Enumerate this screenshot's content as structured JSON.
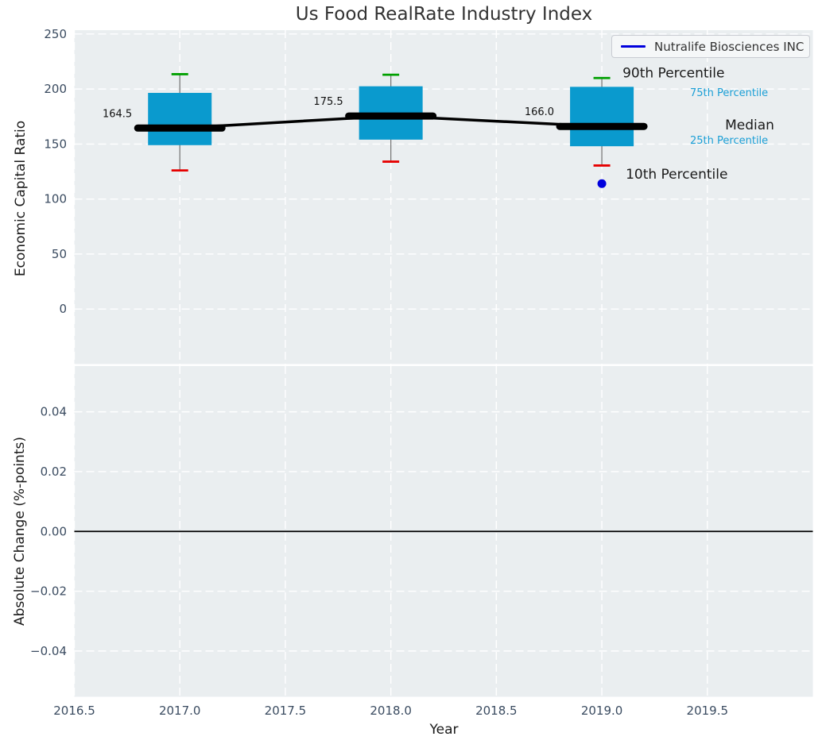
{
  "title": "Us Food RealRate Industry Index",
  "legend": {
    "label": "Nutralife Biosciences INC"
  },
  "colors": {
    "axes_bg": "#eaeef0",
    "grid": "#ffffff",
    "box_fill": "#0a9ace",
    "whisker": "#7a7a7a",
    "cap_high": "#00a000",
    "cap_low": "#e60000",
    "median_line": "#000000",
    "company": "#0000dd",
    "minor_annotation": "#1b9fd6",
    "major_annotation": "#1a1a1a",
    "tick_label": "#3a4b60",
    "zero_line": "#000000",
    "title_text": "#333333"
  },
  "chart_data": {
    "type": "boxplot",
    "title": "Us Food RealRate Industry Index",
    "xlabel": "Year",
    "xlim": [
      2016.5,
      2020.0
    ],
    "x_ticks": [
      {
        "value": 2016.5,
        "label": "2016.5"
      },
      {
        "value": 2017.0,
        "label": "2017.0"
      },
      {
        "value": 2017.5,
        "label": "2017.5"
      },
      {
        "value": 2018.0,
        "label": "2018.0"
      },
      {
        "value": 2018.5,
        "label": "2018.5"
      },
      {
        "value": 2019.0,
        "label": "2019.0"
      },
      {
        "value": 2019.5,
        "label": "2019.5"
      }
    ],
    "top": {
      "ylabel": "Economic Capital Ratio",
      "ylim": [
        -50,
        253.5
      ],
      "y_ticks": [
        {
          "value": 0,
          "label": "0"
        },
        {
          "value": 50,
          "label": "50"
        },
        {
          "value": 100,
          "label": "100"
        },
        {
          "value": 150,
          "label": "150"
        },
        {
          "value": 200,
          "label": "200"
        },
        {
          "value": 250,
          "label": "250"
        }
      ],
      "boxes": [
        {
          "year": 2017,
          "p10": 126,
          "q1": 149,
          "median": 164.5,
          "q3": 196.5,
          "p90": 213.5,
          "median_label": "164.5"
        },
        {
          "year": 2018,
          "p10": 134,
          "q1": 154,
          "median": 175.5,
          "q3": 202.5,
          "p90": 213,
          "median_label": "175.5"
        },
        {
          "year": 2019,
          "p10": 130.5,
          "q1": 148,
          "median": 166.0,
          "q3": 202,
          "p90": 210,
          "median_label": "166.0"
        }
      ],
      "median_trend": [
        [
          2017,
          164.5
        ],
        [
          2018,
          175.5
        ],
        [
          2019,
          166.0
        ]
      ],
      "company_point": {
        "series": "Nutralife Biosciences INC",
        "year": 2019,
        "value": 114
      },
      "annotations": [
        {
          "text": "90th Percentile",
          "year": 2019.098,
          "value": 215,
          "style": "major"
        },
        {
          "text": "75th Percentile",
          "year": 2019.418,
          "value": 198,
          "style": "minor"
        },
        {
          "text": "Median",
          "year": 2019.584,
          "value": 167.5,
          "style": "major"
        },
        {
          "text": "25th Percentile",
          "year": 2019.418,
          "value": 154.5,
          "style": "minor"
        },
        {
          "text": "10th Percentile",
          "year": 2019.113,
          "value": 123,
          "style": "major"
        }
      ]
    },
    "bottom": {
      "ylabel": "Absolute Change (%-points)",
      "ylim": [
        -0.0553,
        0.0553
      ],
      "y_ticks": [
        {
          "value": 0.04,
          "label": "0.04"
        },
        {
          "value": 0.02,
          "label": "0.02"
        },
        {
          "value": 0.0,
          "label": "0.00"
        },
        {
          "value": -0.02,
          "label": "−0.02"
        },
        {
          "value": -0.04,
          "label": "−0.04"
        }
      ],
      "zero_line": 0.0
    }
  }
}
